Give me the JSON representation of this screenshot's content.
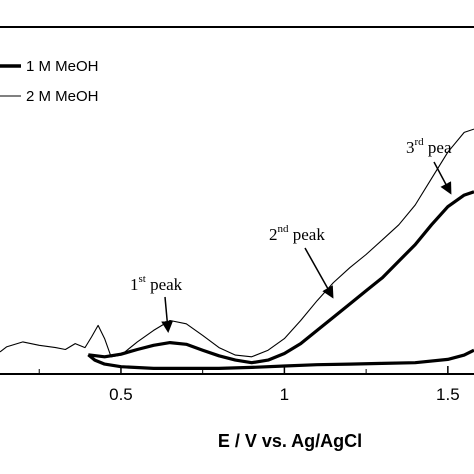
{
  "chart_data": {
    "type": "line",
    "xlabel": "E / V vs. Ag/AgCl",
    "xlim": [
      0.13,
      1.58
    ],
    "ylim": [
      0,
      1.0
    ],
    "x_ticks": [
      0.5,
      1,
      1.5
    ],
    "x_tick_labels": [
      "0.5",
      "1",
      "1.5"
    ],
    "legend_position": "top-left",
    "series": [
      {
        "name": "1 M MeOH",
        "line_weight": "thick",
        "color": "#000000",
        "forward": {
          "x": [
            0.4,
            0.45,
            0.5,
            0.55,
            0.6,
            0.65,
            0.7,
            0.75,
            0.8,
            0.85,
            0.9,
            0.95,
            1.0,
            1.05,
            1.1,
            1.15,
            1.2,
            1.25,
            1.3,
            1.35,
            1.4,
            1.45,
            1.5,
            1.55,
            1.58
          ],
          "y": [
            0.046,
            0.04,
            0.048,
            0.062,
            0.075,
            0.083,
            0.078,
            0.06,
            0.043,
            0.03,
            0.022,
            0.03,
            0.05,
            0.08,
            0.12,
            0.16,
            0.2,
            0.24,
            0.28,
            0.33,
            0.38,
            0.44,
            0.495,
            0.53,
            0.54
          ]
        },
        "reverse": {
          "x": [
            1.58,
            1.55,
            1.5,
            1.4,
            1.3,
            1.2,
            1.1,
            1.0,
            0.9,
            0.8,
            0.7,
            0.6,
            0.5,
            0.45,
            0.42,
            0.4
          ],
          "y": [
            0.06,
            0.045,
            0.032,
            0.022,
            0.02,
            0.018,
            0.016,
            0.012,
            0.008,
            0.005,
            0.005,
            0.005,
            0.01,
            0.018,
            0.03,
            0.046
          ]
        }
      },
      {
        "name": "2 M MeOH",
        "line_weight": "thin",
        "color": "#000000",
        "x": [
          0.13,
          0.15,
          0.2,
          0.25,
          0.3,
          0.33,
          0.36,
          0.39,
          0.41,
          0.43,
          0.45,
          0.47,
          0.5,
          0.55,
          0.6,
          0.65,
          0.7,
          0.75,
          0.8,
          0.85,
          0.9,
          0.95,
          1.0,
          1.05,
          1.1,
          1.15,
          1.2,
          1.25,
          1.3,
          1.35,
          1.4,
          1.45,
          1.5,
          1.55,
          1.58
        ],
        "y": [
          0.055,
          0.07,
          0.085,
          0.075,
          0.068,
          0.062,
          0.08,
          0.068,
          0.1,
          0.135,
          0.095,
          0.04,
          0.045,
          0.085,
          0.12,
          0.15,
          0.14,
          0.105,
          0.068,
          0.045,
          0.04,
          0.06,
          0.095,
          0.15,
          0.21,
          0.265,
          0.31,
          0.35,
          0.395,
          0.44,
          0.5,
          0.58,
          0.66,
          0.72,
          0.73
        ]
      }
    ],
    "annotations": [
      {
        "base": "1",
        "sup": "st",
        "text": " peak",
        "x": 0.7,
        "y": 0.153
      },
      {
        "base": "2",
        "sup": "nd",
        "text": " peak",
        "x": 1.16,
        "y": 0.285
      },
      {
        "base": "3",
        "sup": "rd",
        "text": " pea",
        "x": 1.51,
        "y": 0.68
      }
    ]
  }
}
